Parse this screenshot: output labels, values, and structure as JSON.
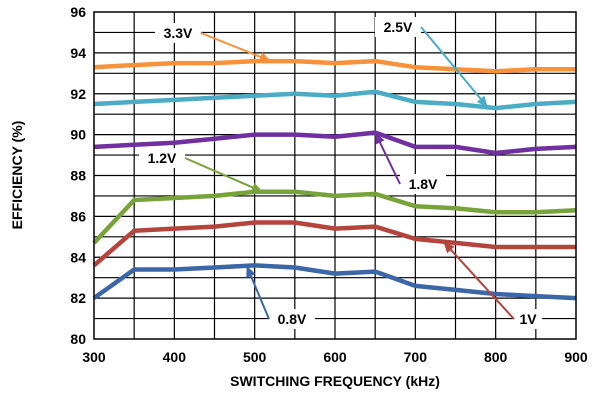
{
  "chart_data": {
    "type": "line",
    "xlabel": "SWITCHING FREQUENCY (kHz)",
    "ylabel": "EFFICIENCY (%)",
    "xlim": [
      300,
      900
    ],
    "ylim": [
      80,
      96
    ],
    "x_ticks": [
      300,
      400,
      500,
      600,
      700,
      800,
      900
    ],
    "y_ticks": [
      80,
      82,
      84,
      86,
      88,
      90,
      92,
      94,
      96
    ],
    "grid": true,
    "series": [
      {
        "name": "3.3V",
        "color": "#F7923A",
        "x": [
          300,
          350,
          400,
          450,
          500,
          550,
          600,
          650,
          700,
          750,
          800,
          850,
          900
        ],
        "y": [
          93.3,
          93.4,
          93.5,
          93.5,
          93.6,
          93.6,
          93.5,
          93.6,
          93.3,
          93.2,
          93.1,
          93.2,
          93.2
        ]
      },
      {
        "name": "2.5V",
        "color": "#4BACC6",
        "x": [
          300,
          350,
          400,
          450,
          500,
          550,
          600,
          650,
          700,
          750,
          800,
          850,
          900
        ],
        "y": [
          91.5,
          91.6,
          91.7,
          91.8,
          91.9,
          92.0,
          91.9,
          92.1,
          91.6,
          91.5,
          91.3,
          91.5,
          91.6
        ]
      },
      {
        "name": "1.8V",
        "color": "#7030A0",
        "x": [
          300,
          350,
          400,
          450,
          500,
          550,
          600,
          650,
          700,
          750,
          800,
          850,
          900
        ],
        "y": [
          89.4,
          89.5,
          89.6,
          89.8,
          90.0,
          90.0,
          89.9,
          90.1,
          89.4,
          89.4,
          89.1,
          89.3,
          89.4
        ]
      },
      {
        "name": "1.2V",
        "color": "#77A33A",
        "x": [
          300,
          350,
          400,
          450,
          500,
          550,
          600,
          650,
          700,
          750,
          800,
          850,
          900
        ],
        "y": [
          84.7,
          86.8,
          86.9,
          87.0,
          87.2,
          87.2,
          87.0,
          87.1,
          86.5,
          86.4,
          86.2,
          86.2,
          86.3
        ]
      },
      {
        "name": "1V",
        "color": "#B5443D",
        "x": [
          300,
          350,
          400,
          450,
          500,
          550,
          600,
          650,
          700,
          750,
          800,
          850,
          900
        ],
        "y": [
          83.6,
          85.3,
          85.4,
          85.5,
          85.7,
          85.7,
          85.4,
          85.5,
          84.9,
          84.7,
          84.5,
          84.5,
          84.5
        ]
      },
      {
        "name": "0.8V",
        "color": "#3B66A8",
        "x": [
          300,
          350,
          400,
          450,
          500,
          550,
          600,
          650,
          700,
          750,
          800,
          850,
          900
        ],
        "y": [
          82.0,
          83.4,
          83.4,
          83.5,
          83.6,
          83.5,
          83.2,
          83.3,
          82.6,
          82.4,
          82.2,
          82.1,
          82.0
        ]
      }
    ],
    "annotations": [
      {
        "text": "3.3V",
        "series": "3.3V"
      },
      {
        "text": "2.5V",
        "series": "2.5V"
      },
      {
        "text": "1.8V",
        "series": "1.8V"
      },
      {
        "text": "1.2V",
        "series": "1.2V"
      },
      {
        "text": "1V",
        "series": "1V"
      },
      {
        "text": "0.8V",
        "series": "0.8V"
      }
    ]
  }
}
